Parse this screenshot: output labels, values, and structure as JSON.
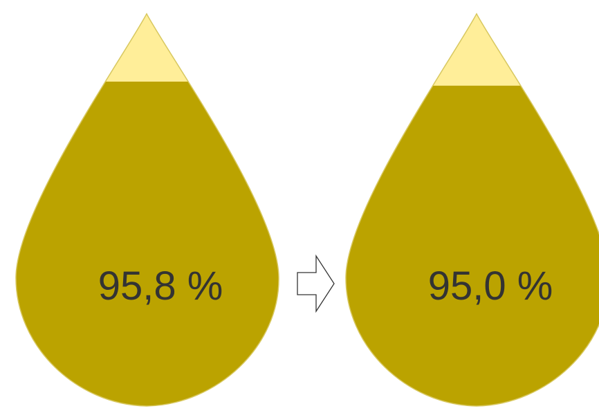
{
  "drops": [
    {
      "value_text": "95,8 %",
      "fill_fraction": 0.958
    },
    {
      "value_text": "95,0 %",
      "fill_fraction": 0.95
    }
  ],
  "arrow": {
    "icon": "right-arrow-icon",
    "direction": "right"
  },
  "colors": {
    "fill": "#BBA300",
    "empty": "#FFEE99",
    "outline": "#D8C860",
    "label": "#333333",
    "arrow_stroke": "#333333",
    "arrow_fill": "#ffffff"
  }
}
